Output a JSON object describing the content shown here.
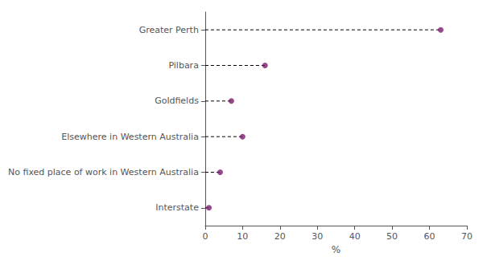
{
  "chart_data": {
    "type": "lollipop",
    "orientation": "horizontal",
    "categories": [
      "Greater Perth",
      "Pilbara",
      "Goldfields",
      "Elsewhere in Western Australia",
      "No fixed place of work in Western Australia",
      "Interstate"
    ],
    "values": [
      63.0,
      16.0,
      7.0,
      10.0,
      4.0,
      1.0
    ],
    "color": "#7B1B6E",
    "line_style": "dashed",
    "xlabel": "%",
    "xlim": [
      0,
      70
    ],
    "xticks": [
      0,
      10,
      20,
      30,
      40,
      50,
      60,
      70
    ],
    "grid": false
  }
}
